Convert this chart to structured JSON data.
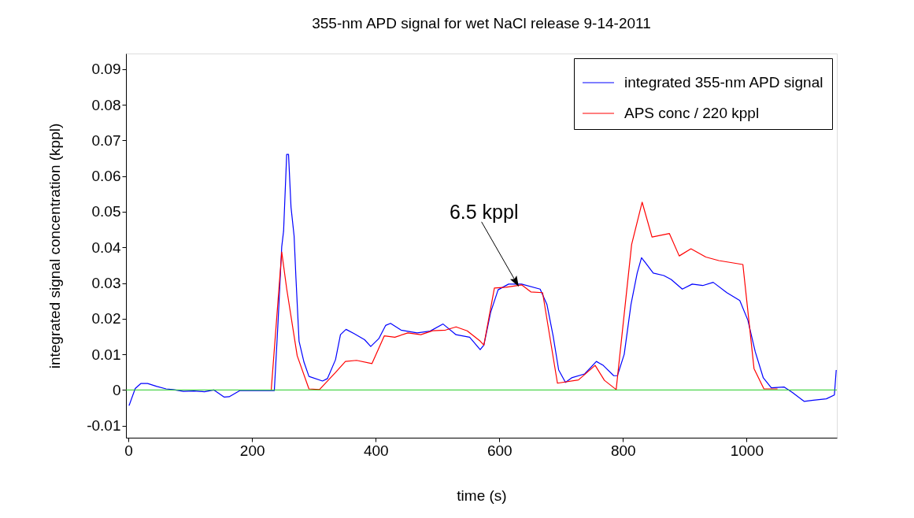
{
  "chart_data": {
    "type": "line",
    "title": "355-nm APD signal for wet NaCl release 9-14-2011",
    "xlabel": "time (s)",
    "ylabel": "integrated signal   concentration (kppl)",
    "xlim": [
      -4,
      1146
    ],
    "xticks": [
      0,
      200,
      400,
      600,
      800,
      1000
    ],
    "ylim": [
      -0.0134,
      0.0944
    ],
    "yticks": [
      -0.01,
      0,
      0.01,
      0.02,
      0.03,
      0.04,
      0.05,
      0.06,
      0.07,
      0.08,
      0.09
    ],
    "grid": false,
    "legend": "top right",
    "line_style": "solid",
    "ref_lines": [
      {
        "axis": "y",
        "value": 0,
        "color": "#22cc22"
      }
    ],
    "annotations": [
      {
        "text": "6.5 kppl",
        "x": 626,
        "y": 0.0306
      }
    ],
    "series": [
      {
        "name": "integrated 355-nm APD signal",
        "color": "#0000ff",
        "x": [
          1,
          11,
          20,
          31,
          46,
          61,
          72,
          89,
          106,
          123,
          138,
          155,
          163,
          180,
          208,
          231,
          236,
          242,
          248,
          251,
          256,
          259,
          263,
          268,
          271,
          276,
          284,
          292,
          314,
          322,
          335,
          343,
          352,
          365,
          382,
          392,
          405,
          416,
          424,
          441,
          467,
          488,
          509,
          530,
          552,
          569,
          575,
          586,
          598,
          615,
          636,
          666,
          677,
          687,
          696,
          707,
          717,
          738,
          757,
          768,
          785,
          791,
          802,
          813,
          823,
          830,
          836,
          849,
          866,
          878,
          896,
          912,
          929,
          946,
          968,
          989,
          1002,
          1014,
          1027,
          1040,
          1061,
          1074,
          1093,
          1108,
          1129,
          1142,
          1145
        ],
        "values": [
          -0.0044,
          0.0004,
          0.0018,
          0.0018,
          0.001,
          0.0003,
          0.0001,
          -0.0004,
          -0.0003,
          -0.0005,
          0,
          -0.002,
          -0.0019,
          -0.0002,
          -0.0002,
          -0.0002,
          -0.0002,
          0.0189,
          0.0402,
          0.0446,
          0.0661,
          0.0661,
          0.0513,
          0.0432,
          0.0314,
          0.0137,
          0.0078,
          0.0038,
          0.0025,
          0.0032,
          0.0085,
          0.0155,
          0.017,
          0.0158,
          0.0141,
          0.0122,
          0.0144,
          0.0181,
          0.0187,
          0.0168,
          0.016,
          0.0165,
          0.0185,
          0.0155,
          0.0148,
          0.0113,
          0.0126,
          0.0218,
          0.0281,
          0.0297,
          0.0297,
          0.0283,
          0.024,
          0.0152,
          0.0056,
          0.0021,
          0.0034,
          0.0045,
          0.008,
          0.0069,
          0.004,
          0.004,
          0.01,
          0.024,
          0.0328,
          0.0371,
          0.0358,
          0.0328,
          0.0321,
          0.031,
          0.0283,
          0.0297,
          0.0293,
          0.0302,
          0.0273,
          0.0251,
          0.0196,
          0.0107,
          0.0034,
          0.0006,
          0.0008,
          -0.0007,
          -0.0032,
          -0.0029,
          -0.0025,
          -0.0014,
          0.0056
        ]
      },
      {
        "name": "APS conc / 220 kppl",
        "color": "#ff0000",
        "x": [
          231,
          248,
          256,
          273,
          292,
          309,
          335,
          351,
          369,
          394,
          414,
          431,
          452,
          473,
          492,
          513,
          530,
          548,
          569,
          575,
          592,
          611,
          630,
          636,
          651,
          670,
          694,
          728,
          755,
          770,
          789,
          814,
          831,
          847,
          875,
          891,
          910,
          934,
          955,
          994,
          1012,
          1028,
          1050
        ],
        "values": [
          0,
          0.0387,
          0.0284,
          0.0096,
          0.0003,
          0.0001,
          0.0049,
          0.008,
          0.0083,
          0.0074,
          0.0152,
          0.0148,
          0.016,
          0.0155,
          0.0166,
          0.0168,
          0.0177,
          0.0166,
          0.0137,
          0.0126,
          0.0286,
          0.0288,
          0.0293,
          0.0295,
          0.0275,
          0.0273,
          0.0019,
          0.0028,
          0.0069,
          0.0027,
          0.0001,
          0.0408,
          0.0527,
          0.0429,
          0.0439,
          0.0376,
          0.0396,
          0.0373,
          0.0363,
          0.0352,
          0.006,
          0.0003,
          0.0003
        ]
      }
    ]
  }
}
